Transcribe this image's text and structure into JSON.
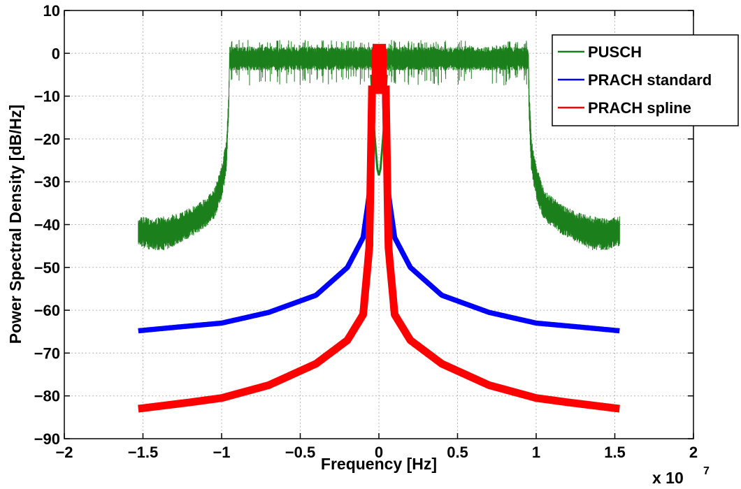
{
  "chart_data": {
    "type": "line",
    "title": "",
    "xlabel": "Frequency [Hz]",
    "ylabel": "Power Spectral Density [dB/Hz]",
    "x_multiplier_label": "x 10",
    "x_multiplier_exponent": "7",
    "xlim": [
      -2,
      2
    ],
    "ylim": [
      -90,
      10
    ],
    "xticks": [
      -2,
      -1.5,
      -1,
      -0.5,
      0,
      0.5,
      1,
      1.5,
      2
    ],
    "xtick_labels": [
      "−2",
      "−1.5",
      "−1",
      "−0.5",
      "0",
      "0.5",
      "1",
      "1.5",
      "2"
    ],
    "yticks": [
      10,
      0,
      -10,
      -20,
      -30,
      -40,
      -50,
      -60,
      -70,
      -80,
      -90
    ],
    "ytick_labels": [
      "10",
      "0",
      "−10",
      "−20",
      "−30",
      "−40",
      "−50",
      "−60",
      "−70",
      "−80",
      "−90"
    ],
    "grid": true,
    "legend_position": "top-right",
    "series": [
      {
        "name": "PUSCH",
        "color": "#1b7f1b",
        "x": [
          -1.53,
          -1.45,
          -1.35,
          -1.25,
          -1.15,
          -1.05,
          -1.0,
          -0.97,
          -0.955,
          -0.95,
          -0.9,
          -0.5,
          0,
          0.5,
          0.9,
          0.95,
          0.955,
          0.97,
          1.0,
          1.05,
          1.15,
          1.25,
          1.35,
          1.45,
          1.53
        ],
        "upper": [
          -38,
          -38.5,
          -38,
          -37,
          -35,
          -32,
          -26,
          -20,
          -8,
          1.5,
          1.5,
          1.5,
          1.5,
          1.5,
          1.5,
          1.5,
          -8,
          -20,
          -26,
          -32,
          -35,
          -37,
          -38,
          -38.5,
          -38
        ],
        "lower": [
          -45,
          -46,
          -46,
          -44,
          -42,
          -39,
          -34,
          -28,
          -16,
          -4,
          -4,
          -4,
          -4,
          -4,
          -4,
          -4,
          -16,
          -28,
          -34,
          -39,
          -42,
          -44,
          -46,
          -46,
          -45
        ],
        "center_dip_x": [
          -0.05,
          -0.03,
          -0.01,
          0,
          0.01,
          0.03,
          0.05
        ],
        "center_dip_y": [
          -5,
          -18,
          -27,
          -28.5,
          -27,
          -18,
          -5
        ]
      },
      {
        "name": "PRACH standard",
        "color": "#0000ff",
        "x": [
          -1.53,
          -1.3,
          -1.0,
          -0.7,
          -0.4,
          -0.2,
          -0.1,
          -0.05,
          -0.035,
          0,
          0.035,
          0.05,
          0.1,
          0.2,
          0.4,
          0.7,
          1.0,
          1.3,
          1.53
        ],
        "y": [
          -64.8,
          -64.0,
          -63.0,
          -60.5,
          -56.5,
          -50.0,
          -43.0,
          -30.0,
          -8.0,
          -8.0,
          -8.0,
          -30.0,
          -43.0,
          -50.0,
          -56.5,
          -60.5,
          -63.0,
          -64.0,
          -64.8
        ],
        "band_width_db": 1.2
      },
      {
        "name": "PRACH spline",
        "color": "#ff0000",
        "x": [
          -1.53,
          -1.2,
          -1.0,
          -0.7,
          -0.4,
          -0.2,
          -0.1,
          -0.06,
          -0.04,
          0,
          0.04,
          0.06,
          0.1,
          0.2,
          0.4,
          0.7,
          1.0,
          1.2,
          1.53
        ],
        "y": [
          -83.0,
          -81.5,
          -80.5,
          -77.5,
          -72.5,
          -67.0,
          -61.0,
          -45.0,
          1.0,
          1.0,
          1.0,
          -45.0,
          -61.0,
          -67.0,
          -72.5,
          -77.5,
          -80.5,
          -81.5,
          -83.0
        ],
        "band_width_db": 1.8
      }
    ]
  }
}
